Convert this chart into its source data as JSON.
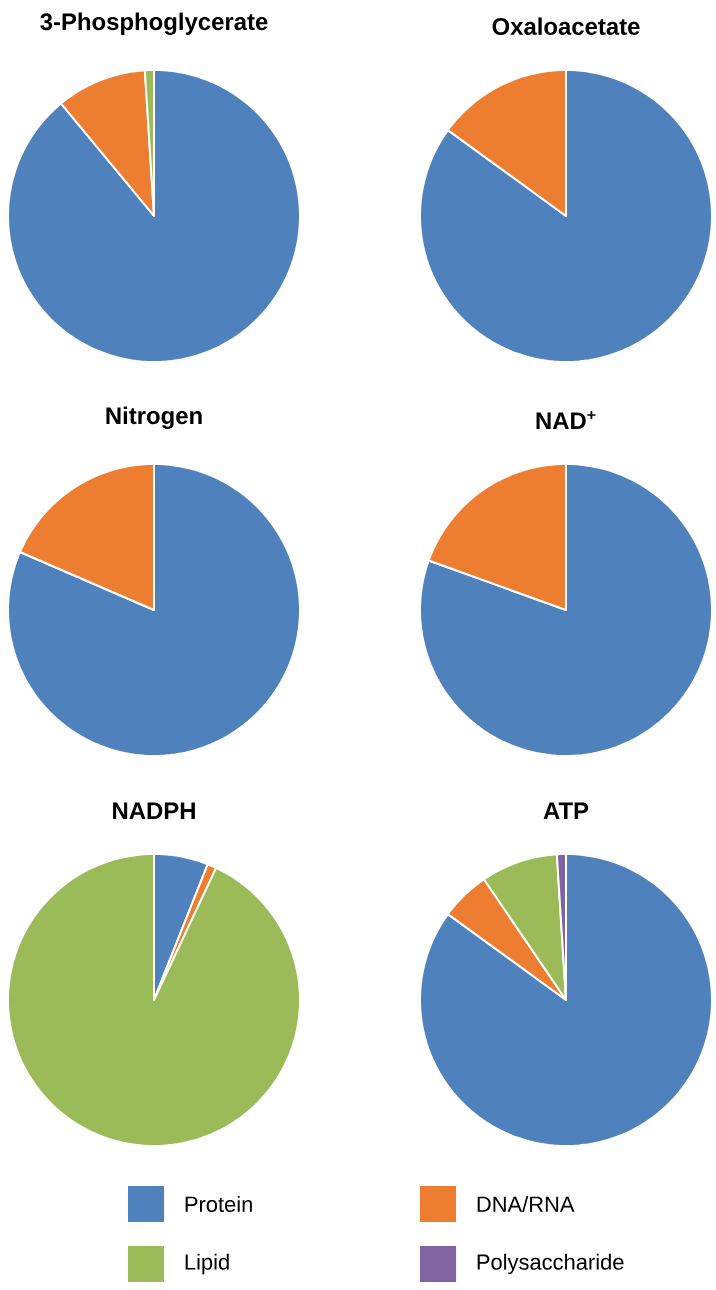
{
  "chart_data": [
    {
      "type": "pie",
      "title": "3-Phosphoglycerate",
      "values": [
        89,
        10,
        1,
        0
      ],
      "colors": [
        "#4f81bd",
        "#ed7d31",
        "#9bbb59",
        "#8064a2"
      ]
    },
    {
      "type": "pie",
      "title": "Oxaloacetate",
      "values": [
        85,
        15,
        0,
        0
      ],
      "colors": [
        "#4f81bd",
        "#ed7d31",
        "#9bbb59",
        "#8064a2"
      ]
    },
    {
      "type": "pie",
      "title": "Nitrogen",
      "values": [
        81.5,
        18.5,
        0,
        0
      ],
      "colors": [
        "#4f81bd",
        "#ed7d31",
        "#9bbb59",
        "#8064a2"
      ]
    },
    {
      "type": "pie",
      "title": "NAD$^{+}$",
      "values": [
        80.5,
        19.5,
        0,
        0
      ],
      "colors": [
        "#4f81bd",
        "#ed7d31",
        "#9bbb59",
        "#8064a2"
      ]
    },
    {
      "type": "pie",
      "title": "NADPH",
      "values": [
        6,
        1,
        93,
        0
      ],
      "colors": [
        "#4f81bd",
        "#ed7d31",
        "#9bbb59",
        "#8064a2"
      ]
    },
    {
      "type": "pie",
      "title": "ATP",
      "categories": [
        "Protein",
        "DNA/RNA",
        "Lipid",
        "Polysaccharide"
      ],
      "values": [
        85,
        5.5,
        8.5,
        1
      ],
      "colors": [
        "#4f81bd",
        "#ed7d31",
        "#9bbb59",
        "#8064a2"
      ],
      "legend": "bottom"
    }
  ]
}
